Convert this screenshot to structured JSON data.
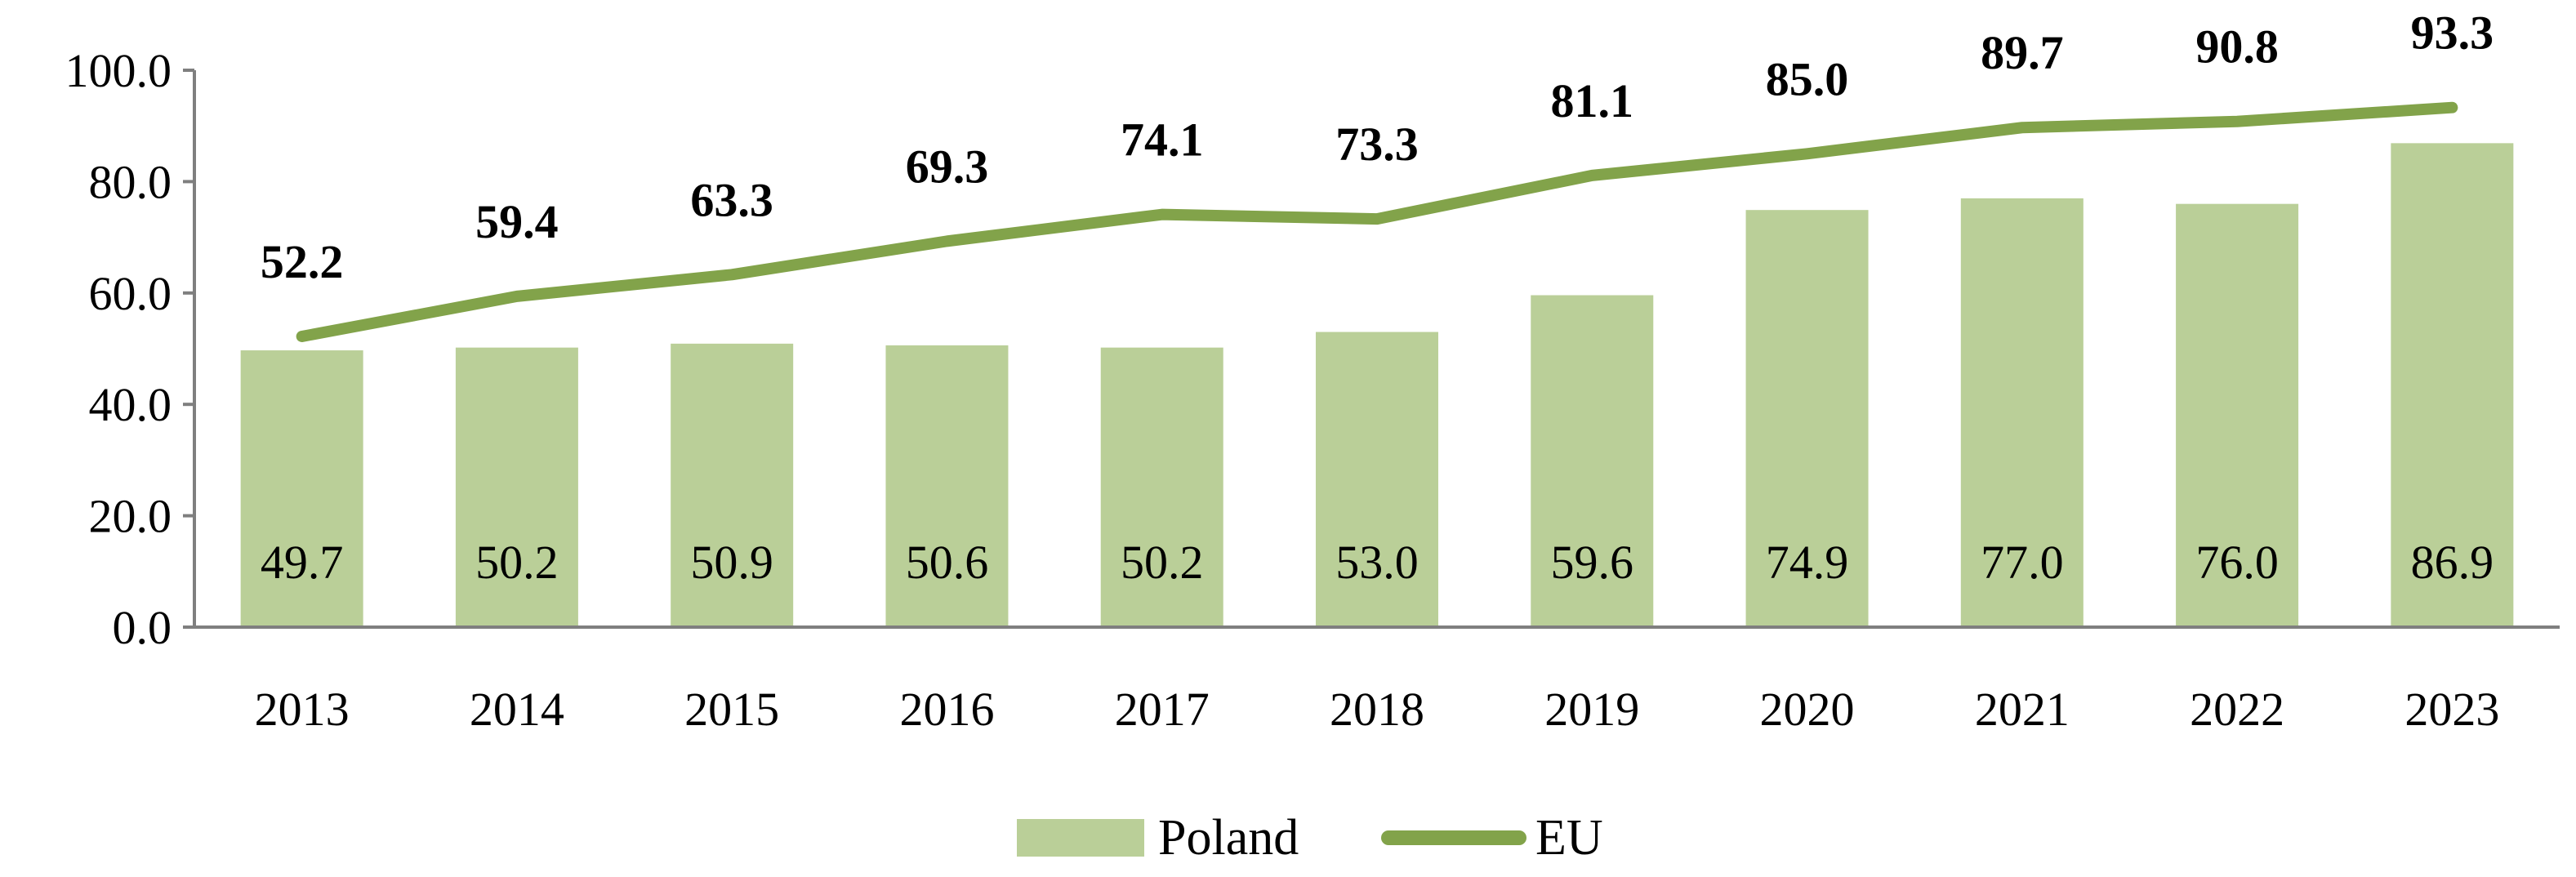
{
  "chart_data": {
    "type": "bar",
    "title": "",
    "xlabel": "",
    "ylabel": "",
    "categories": [
      "2013",
      "2014",
      "2015",
      "2016",
      "2017",
      "2018",
      "2019",
      "2020",
      "2021",
      "2022",
      "2023"
    ],
    "ylim": [
      0,
      100
    ],
    "yticks": [
      0,
      20,
      40,
      60,
      80,
      100
    ],
    "ytick_labels": [
      "0.0",
      "20.0",
      "40.0",
      "60.0",
      "80.0",
      "100.0"
    ],
    "grid": false,
    "legend_position": "bottom",
    "series": [
      {
        "name": "Poland",
        "type": "bar",
        "color": "#bacf98",
        "values": [
          49.7,
          50.2,
          50.9,
          50.6,
          50.2,
          53.0,
          59.6,
          74.9,
          77.0,
          76.0,
          86.9
        ],
        "labels": [
          "49.7",
          "50.2",
          "50.9",
          "50.6",
          "50.2",
          "53.0",
          "59.6",
          "74.9",
          "77.0",
          "76.0",
          "86.9"
        ]
      },
      {
        "name": "EU",
        "type": "line",
        "color": "#82a34a",
        "values": [
          52.2,
          59.4,
          63.3,
          69.3,
          74.1,
          73.3,
          81.1,
          85.0,
          89.7,
          90.8,
          93.3
        ],
        "labels": [
          "52.2",
          "59.4",
          "63.3",
          "69.3",
          "74.1",
          "73.3",
          "81.1",
          "85.0",
          "89.7",
          "90.8",
          "93.3"
        ]
      }
    ]
  },
  "legend": {
    "items": [
      "Poland",
      "EU"
    ]
  }
}
